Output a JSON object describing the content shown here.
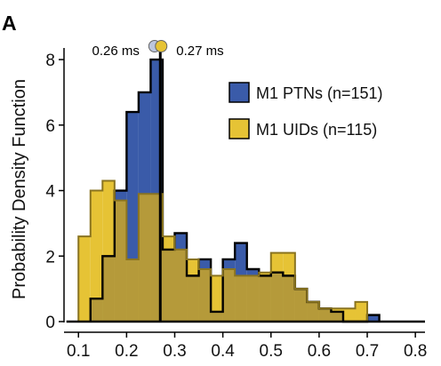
{
  "panel_label": "A",
  "chart_data": {
    "type": "histogram",
    "xlabel": "",
    "ylabel": "Probability Density Function",
    "xlim": [
      0.07,
      0.82
    ],
    "ylim": [
      0,
      8.3
    ],
    "xticks": [
      "0.1",
      "0.2",
      "0.3",
      "0.4",
      "0.5",
      "0.6",
      "0.7",
      "0.8"
    ],
    "yticks": [
      "0",
      "2",
      "4",
      "6",
      "8"
    ],
    "bin_width": 0.025,
    "series": [
      {
        "name": "M1 PTNs (n=151)",
        "color": "#3a5ba9",
        "bins": [
          [
            0.125,
            0.15,
            0.7
          ],
          [
            0.15,
            0.175,
            2.0
          ],
          [
            0.175,
            0.2,
            4.0
          ],
          [
            0.2,
            0.225,
            6.4
          ],
          [
            0.225,
            0.25,
            7.0
          ],
          [
            0.25,
            0.275,
            8.0
          ],
          [
            0.275,
            0.3,
            2.2
          ],
          [
            0.3,
            0.325,
            2.7
          ],
          [
            0.325,
            0.35,
            1.4
          ],
          [
            0.35,
            0.375,
            1.9
          ],
          [
            0.375,
            0.4,
            0.3
          ],
          [
            0.4,
            0.425,
            1.9
          ],
          [
            0.425,
            0.45,
            2.4
          ],
          [
            0.45,
            0.475,
            1.6
          ],
          [
            0.475,
            0.5,
            1.4
          ],
          [
            0.5,
            0.525,
            1.5
          ],
          [
            0.525,
            0.55,
            1.4
          ],
          [
            0.55,
            0.575,
            1.0
          ],
          [
            0.575,
            0.6,
            0.6
          ],
          [
            0.6,
            0.625,
            0.4
          ],
          [
            0.625,
            0.65,
            0.3
          ],
          [
            0.65,
            0.675,
            0.0
          ],
          [
            0.675,
            0.7,
            0.0
          ],
          [
            0.7,
            0.725,
            0.2
          ]
        ]
      },
      {
        "name": "M1 UIDs (n=115)",
        "color": "#e6c335",
        "bins": [
          [
            0.1,
            0.125,
            2.6
          ],
          [
            0.125,
            0.15,
            4.0
          ],
          [
            0.15,
            0.175,
            4.3
          ],
          [
            0.175,
            0.2,
            3.7
          ],
          [
            0.2,
            0.225,
            1.9
          ],
          [
            0.225,
            0.25,
            3.9
          ],
          [
            0.25,
            0.275,
            3.9
          ],
          [
            0.275,
            0.3,
            2.6
          ],
          [
            0.3,
            0.325,
            2.2
          ],
          [
            0.325,
            0.35,
            1.9
          ],
          [
            0.35,
            0.375,
            1.6
          ],
          [
            0.375,
            0.4,
            1.4
          ],
          [
            0.4,
            0.425,
            1.6
          ],
          [
            0.425,
            0.45,
            1.4
          ],
          [
            0.45,
            0.475,
            1.4
          ],
          [
            0.475,
            0.5,
            1.5
          ],
          [
            0.5,
            0.525,
            2.1
          ],
          [
            0.525,
            0.55,
            2.1
          ],
          [
            0.55,
            0.575,
            1.0
          ],
          [
            0.575,
            0.6,
            0.6
          ],
          [
            0.6,
            0.625,
            0.4
          ],
          [
            0.625,
            0.65,
            0.4
          ],
          [
            0.65,
            0.675,
            0.4
          ],
          [
            0.675,
            0.7,
            0.6
          ]
        ]
      }
    ],
    "overlap_color": "#b59a3a",
    "outline_color": "#000000",
    "medians": [
      {
        "label": "0.26 ms",
        "x": 0.26,
        "marker_color": "#bcc6de"
      },
      {
        "label": "0.27 ms",
        "x": 0.27,
        "marker_color": "#e6c335"
      }
    ],
    "median_line_x": 0.27,
    "legend_position": "top-right"
  }
}
